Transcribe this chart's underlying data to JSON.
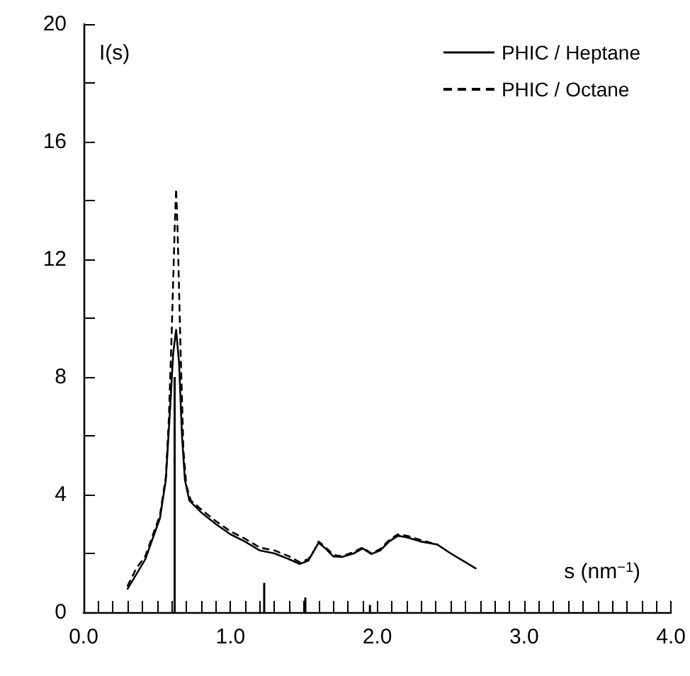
{
  "chart_data": {
    "type": "line",
    "xlabel": "s (nm$^{−1}$)",
    "ylabel": "I(s)",
    "xlim": [
      0,
      4
    ],
    "ylim": [
      0,
      20
    ],
    "xticks": [
      {
        "value": 0,
        "label": "0.0"
      },
      {
        "value": 0.1,
        "label": null
      },
      {
        "value": 0.2,
        "label": null
      },
      {
        "value": 0.3,
        "label": null
      },
      {
        "value": 0.4,
        "label": null
      },
      {
        "value": 0.5,
        "label": null
      },
      {
        "value": 0.6,
        "label": null
      },
      {
        "value": 0.7,
        "label": null
      },
      {
        "value": 0.8,
        "label": null
      },
      {
        "value": 0.9,
        "label": null
      },
      {
        "value": 1,
        "label": "1.0"
      },
      {
        "value": 1.1,
        "label": null
      },
      {
        "value": 1.2,
        "label": null
      },
      {
        "value": 1.3,
        "label": null
      },
      {
        "value": 1.4,
        "label": null
      },
      {
        "value": 1.5,
        "label": null
      },
      {
        "value": 1.6,
        "label": null
      },
      {
        "value": 1.7,
        "label": null
      },
      {
        "value": 1.8,
        "label": null
      },
      {
        "value": 1.9,
        "label": null
      },
      {
        "value": 2,
        "label": "2.0"
      },
      {
        "value": 2.1,
        "label": null
      },
      {
        "value": 2.2,
        "label": null
      },
      {
        "value": 2.3,
        "label": null
      },
      {
        "value": 2.4,
        "label": null
      },
      {
        "value": 2.5,
        "label": null
      },
      {
        "value": 2.6,
        "label": null
      },
      {
        "value": 2.7,
        "label": null
      },
      {
        "value": 2.8,
        "label": null
      },
      {
        "value": 2.9,
        "label": null
      },
      {
        "value": 3,
        "label": "3.0"
      },
      {
        "value": 3.1,
        "label": null
      },
      {
        "value": 3.2,
        "label": null
      },
      {
        "value": 3.3,
        "label": null
      },
      {
        "value": 3.4,
        "label": null
      },
      {
        "value": 3.5,
        "label": null
      },
      {
        "value": 3.6,
        "label": null
      },
      {
        "value": 3.7,
        "label": null
      },
      {
        "value": 3.8,
        "label": null
      },
      {
        "value": 3.9,
        "label": null
      },
      {
        "value": 4,
        "label": "4.0"
      }
    ],
    "yticks": [
      0,
      {
        "value": 2,
        "label": null
      },
      4,
      {
        "value": 6,
        "label": null
      },
      8,
      {
        "value": 10,
        "label": null
      },
      12,
      {
        "value": 14,
        "label": null
      },
      16,
      {
        "value": 18,
        "label": null
      },
      20
    ],
    "grid": false,
    "legend": "top right",
    "marker": "none",
    "series": [
      {
        "name": "PHIC / Heptane",
        "color": "#000000",
        "line_style": "solid",
        "x": [
          0.3,
          0.36,
          0.42,
          0.47,
          0.52,
          0.56,
          0.59,
          0.61,
          0.63,
          0.65,
          0.67,
          0.69,
          0.72,
          0.8,
          0.9,
          1.0,
          1.1,
          1.2,
          1.3,
          1.4,
          1.47,
          1.53,
          1.57,
          1.6,
          1.64,
          1.7,
          1.76,
          1.84,
          1.9,
          1.96,
          2.02,
          2.08,
          2.14,
          2.2,
          2.3,
          2.41,
          2.5,
          2.6,
          2.67
        ],
        "values": [
          0.8,
          1.3,
          1.8,
          2.5,
          3.2,
          4.5,
          7,
          8.8,
          9.6,
          8.5,
          6,
          4.5,
          3.8,
          3.4,
          3.0,
          2.65,
          2.4,
          2.1,
          2.0,
          1.8,
          1.64,
          1.75,
          2.1,
          2.36,
          2.2,
          1.9,
          1.88,
          2.0,
          2.17,
          1.98,
          2.1,
          2.4,
          2.6,
          2.55,
          2.4,
          2.3,
          2.0,
          1.7,
          1.49
        ]
      },
      {
        "name": "PHIC / Octane",
        "color": "#000000",
        "line_style": "dashed",
        "x": [
          0.3,
          0.36,
          0.42,
          0.47,
          0.52,
          0.56,
          0.58,
          0.6,
          0.62,
          0.63,
          0.64,
          0.66,
          0.68,
          0.7,
          0.73,
          0.8,
          0.9,
          1.0,
          1.1,
          1.2,
          1.3,
          1.4,
          1.47,
          1.53,
          1.57,
          1.6,
          1.64,
          1.7,
          1.76,
          1.84,
          1.9,
          1.96,
          2.02,
          2.08,
          2.14,
          2.2,
          2.3,
          2.41
        ],
        "values": [
          0.9,
          1.5,
          1.9,
          2.6,
          3.3,
          4.6,
          6.5,
          9.5,
          13,
          14.4,
          13,
          9,
          5.5,
          4.3,
          3.8,
          3.5,
          3.1,
          2.75,
          2.5,
          2.2,
          2.1,
          1.9,
          1.7,
          1.8,
          2.1,
          2.4,
          2.25,
          1.95,
          1.9,
          2.05,
          2.2,
          2.0,
          2.15,
          2.45,
          2.65,
          2.6,
          2.45,
          2.3
        ]
      },
      {
        "type": "bar",
        "color": "#000000",
        "x": [
          0.62,
          1.23,
          1.51,
          1.95
        ],
        "values": [
          8,
          1.0,
          0.5,
          0.25
        ]
      }
    ]
  }
}
